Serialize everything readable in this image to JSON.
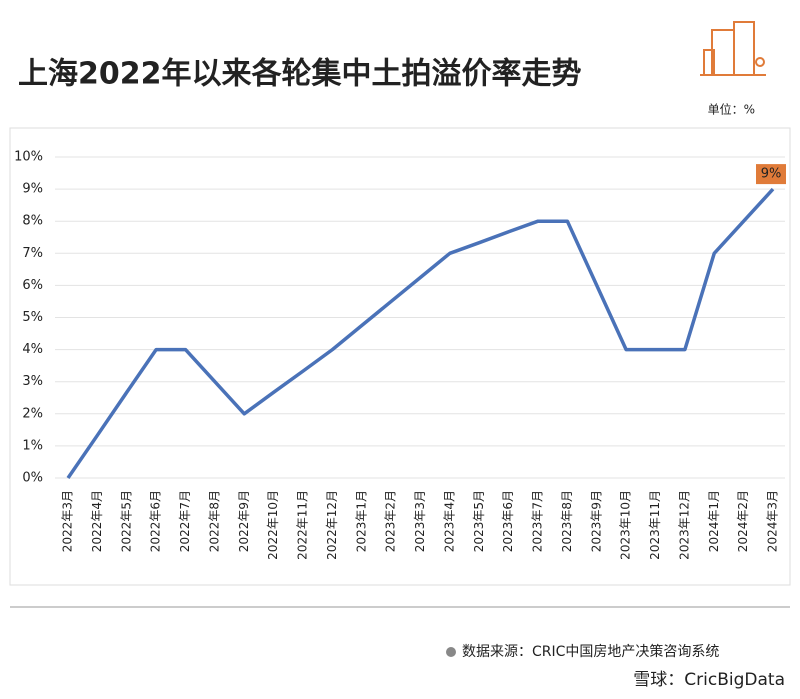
{
  "chart_data": {
    "type": "line",
    "title": "上海2022年以来各轮集中土拍溢价率走势",
    "unit": "单位：%",
    "source": "数据来源：CRIC中国房地产决策咨询系统",
    "watermark": "雪球：CricBigData",
    "categories": [
      "2022年3月",
      "2022年4月",
      "2022年5月",
      "2022年6月",
      "2022年7月",
      "2022年8月",
      "2022年9月",
      "2022年10月",
      "2022年11月",
      "2022年12月",
      "2023年1月",
      "2023年2月",
      "2023年3月",
      "2023年4月",
      "2023年5月",
      "2023年6月",
      "2023年7月",
      "2023年8月",
      "2023年9月",
      "2023年10月",
      "2023年11月",
      "2023年12月",
      "2024年1月",
      "2024年2月",
      "2024年3月"
    ],
    "values": [
      0,
      1.33,
      2.67,
      4,
      4,
      3,
      2,
      2.67,
      3.33,
      4,
      4.75,
      5.5,
      6.25,
      7,
      7.33,
      7.67,
      8,
      8,
      6,
      4,
      4,
      4,
      7,
      8,
      9
    ],
    "value_labels": [
      null,
      null,
      null,
      null,
      null,
      null,
      null,
      null,
      null,
      null,
      null,
      null,
      null,
      null,
      null,
      null,
      null,
      null,
      null,
      null,
      null,
      null,
      null,
      null,
      "9%"
    ],
    "color": "#4a72b8",
    "label_color": "#e07b39",
    "ylim": [
      0,
      10
    ],
    "yticks": [
      {
        "value": 0,
        "label": "0%"
      },
      {
        "value": 1,
        "label": "1%"
      },
      {
        "value": 2,
        "label": "2%"
      },
      {
        "value": 3,
        "label": "3%"
      },
      {
        "value": 4,
        "label": "4%"
      },
      {
        "value": 5,
        "label": "5%"
      },
      {
        "value": 6,
        "label": "6%"
      },
      {
        "value": 7,
        "label": "7%"
      },
      {
        "value": 8,
        "label": "8%"
      },
      {
        "value": 9,
        "label": "9%"
      },
      {
        "value": 10,
        "label": "10%"
      }
    ],
    "grid": true
  }
}
